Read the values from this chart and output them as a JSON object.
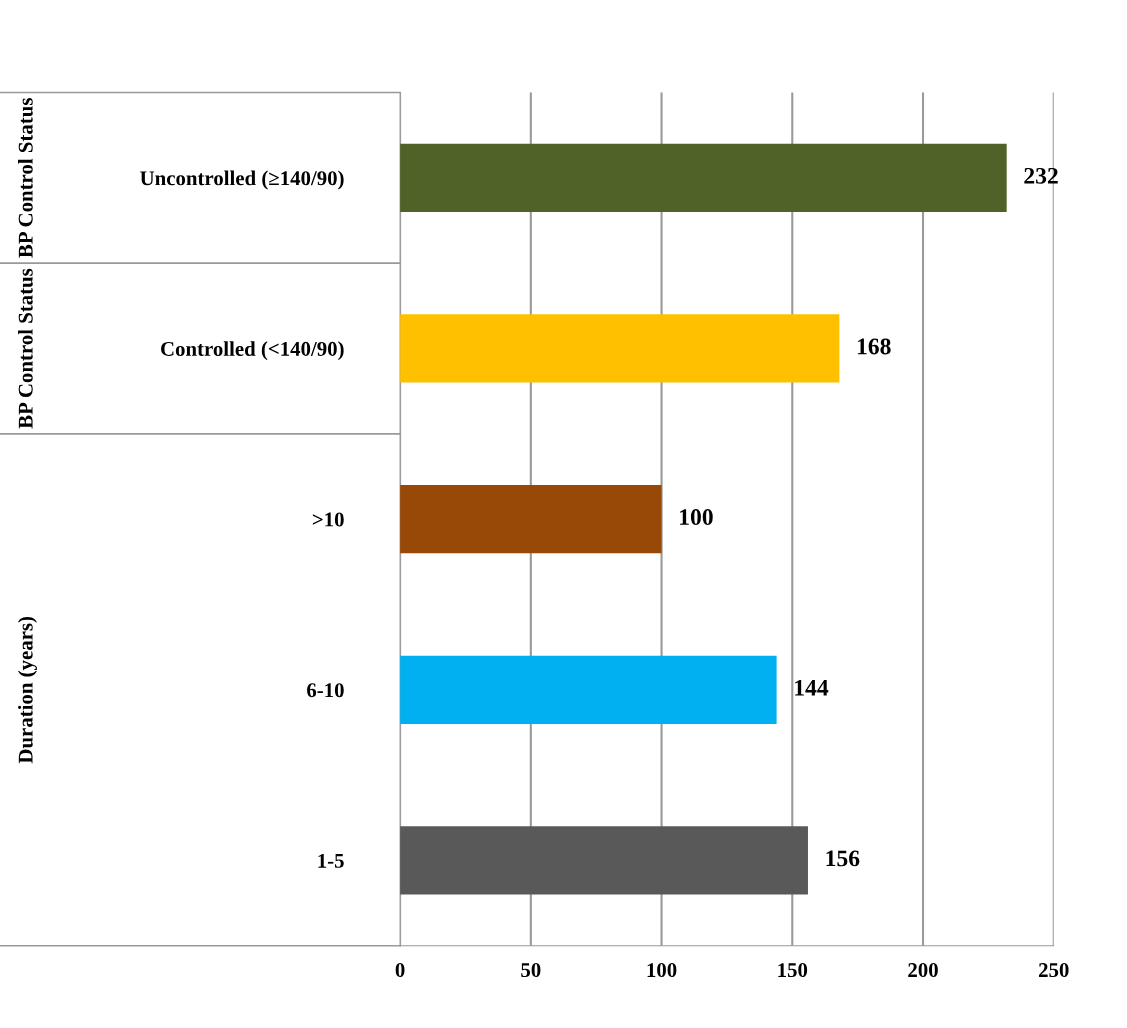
{
  "chart_data": {
    "type": "bar",
    "orientation": "horizontal",
    "categories": [
      "Uncontrolled (≥140/90)",
      "Controlled (<140/90)",
      ">10",
      "6-10",
      "1-5"
    ],
    "values": [
      232,
      168,
      100,
      144,
      156
    ],
    "colors": [
      "#4f6228",
      "#ffc000",
      "#984807",
      "#00b0f0",
      "#595959"
    ],
    "xlim": [
      0,
      250
    ],
    "xticks": [
      0,
      50,
      100,
      150,
      200,
      250
    ],
    "grid": "x",
    "data_labels": true,
    "annotations": [
      "BP Control Status",
      "BP Control Status",
      "Duration (years)"
    ]
  }
}
